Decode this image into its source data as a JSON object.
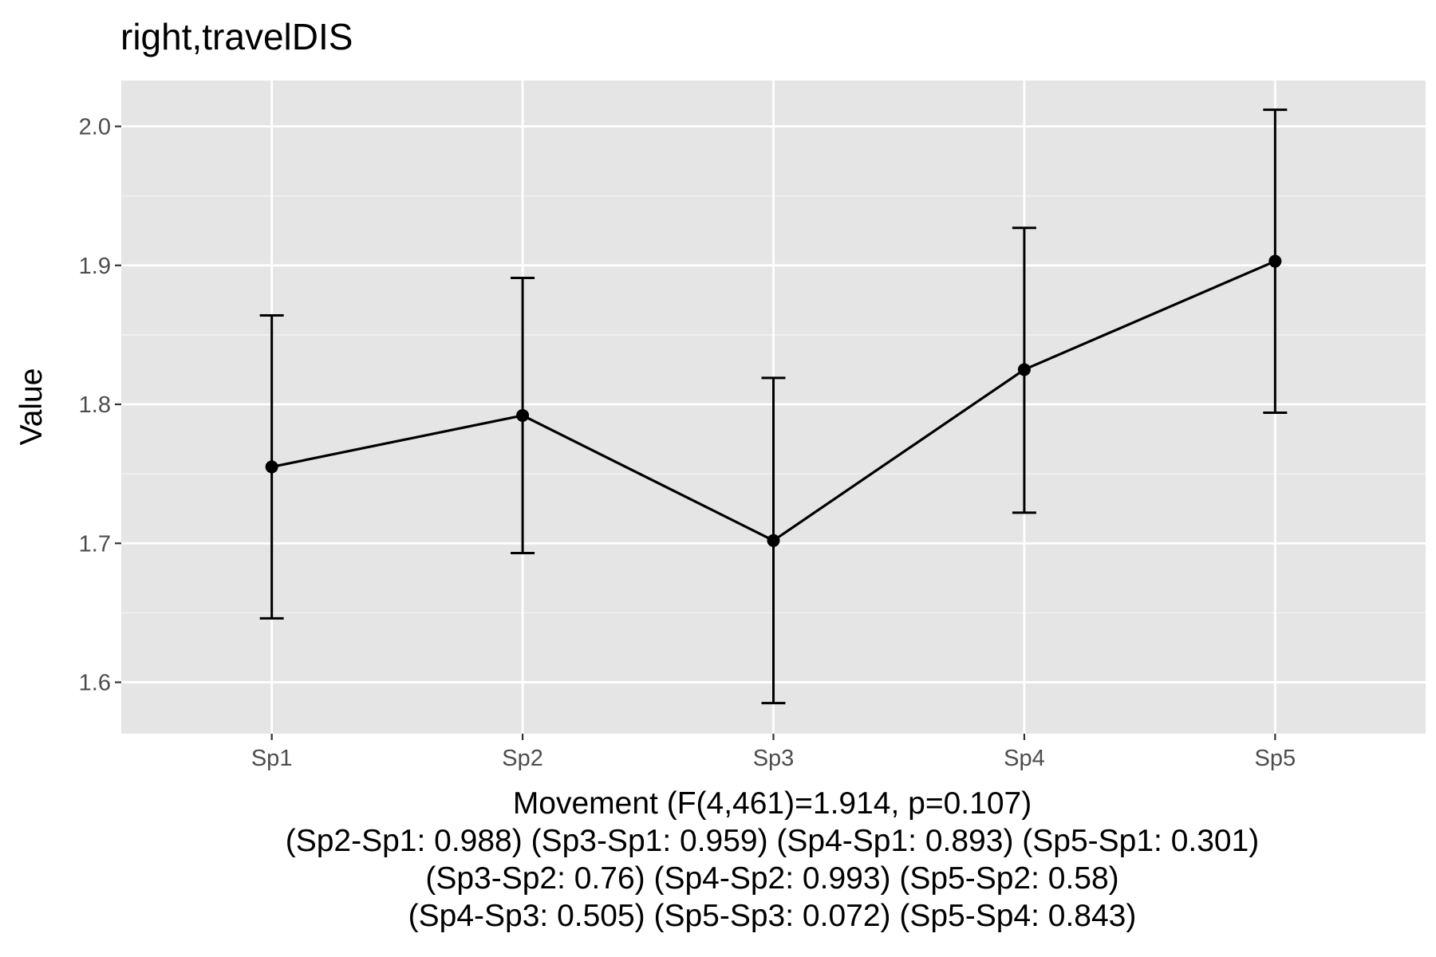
{
  "chart_data": {
    "type": "line",
    "title": "right,travelDIS",
    "ylabel": "Value",
    "xlabel_lines": [
      "Movement (F(4,461)=1.914, p=0.107)",
      "(Sp2-Sp1: 0.988) (Sp3-Sp1: 0.959) (Sp4-Sp1: 0.893) (Sp5-Sp1: 0.301)",
      "(Sp3-Sp2: 0.76) (Sp4-Sp2: 0.993) (Sp5-Sp2: 0.58)",
      "(Sp4-Sp3: 0.505) (Sp5-Sp3: 0.072) (Sp5-Sp4: 0.843)"
    ],
    "categories": [
      "Sp1",
      "Sp2",
      "Sp3",
      "Sp4",
      "Sp5"
    ],
    "series": [
      {
        "values": [
          1.755,
          1.792,
          1.702,
          1.825,
          1.903
        ],
        "lower": [
          1.646,
          1.693,
          1.585,
          1.722,
          1.794
        ],
        "upper": [
          1.864,
          1.891,
          1.819,
          1.927,
          2.012
        ]
      }
    ],
    "ylim": [
      1.563,
      2.033
    ],
    "yticks": [
      1.6,
      1.7,
      1.8,
      1.9,
      2.0
    ],
    "ytick_labels": [
      "1.6",
      "1.7",
      "1.8",
      "1.9",
      "2.0"
    ],
    "grid": true,
    "colors": {
      "panel_background": "#e5e5e5",
      "grid_major": "#ffffff",
      "grid_minor": "#f2f2f2",
      "series": "#000000",
      "tick_text": "#4d4d4d"
    }
  }
}
